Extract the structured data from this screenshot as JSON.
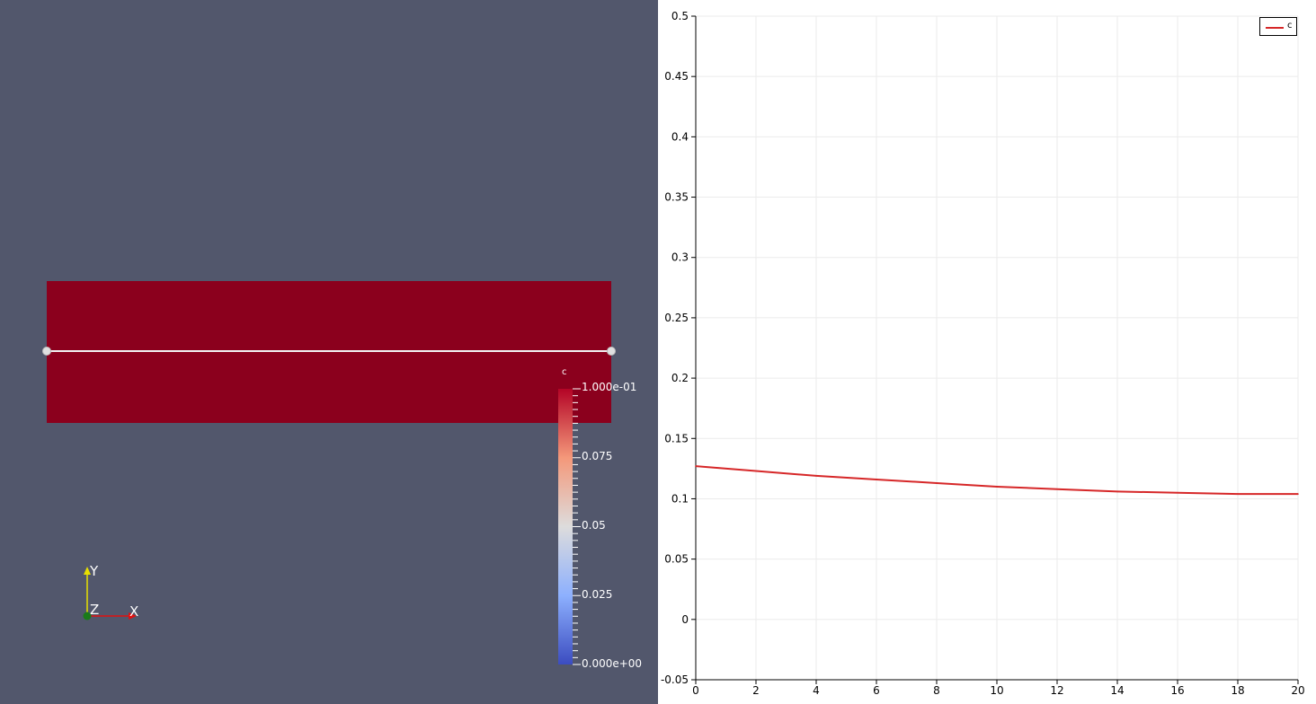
{
  "render_view": {
    "colors": {
      "background": "#52576c",
      "slab": "#8b001d",
      "probe_line": "#f2f2f2"
    },
    "colorbar": {
      "title": "c",
      "tick_labels": [
        "1.000e-01",
        "0.075",
        "0.05",
        "0.025",
        "0.000e+00"
      ],
      "colormap": [
        "#b40426",
        "#f4987a",
        "#dddcdc",
        "#8db0fe",
        "#3b4cc0"
      ]
    },
    "axes_triad": {
      "x_label": "X",
      "y_label": "Y",
      "z_label": "Z"
    }
  },
  "chart_data": {
    "type": "line",
    "title": "",
    "xlabel": "",
    "ylabel": "",
    "xlim": [
      0,
      20
    ],
    "ylim": [
      -0.05,
      0.5
    ],
    "x_ticks": [
      0,
      2,
      4,
      6,
      8,
      10,
      12,
      14,
      16,
      18,
      20
    ],
    "y_ticks": [
      -0.05,
      0,
      0.05,
      0.1,
      0.15,
      0.2,
      0.25,
      0.3,
      0.35,
      0.4,
      0.45,
      0.5
    ],
    "grid": true,
    "legend": "top-right",
    "series": [
      {
        "name": "c",
        "color": "#d62728",
        "x": [
          0,
          2,
          4,
          6,
          8,
          10,
          12,
          14,
          16,
          18,
          20
        ],
        "y": [
          0.127,
          0.123,
          0.119,
          0.116,
          0.113,
          0.11,
          0.108,
          0.106,
          0.105,
          0.104,
          0.104
        ]
      }
    ]
  }
}
